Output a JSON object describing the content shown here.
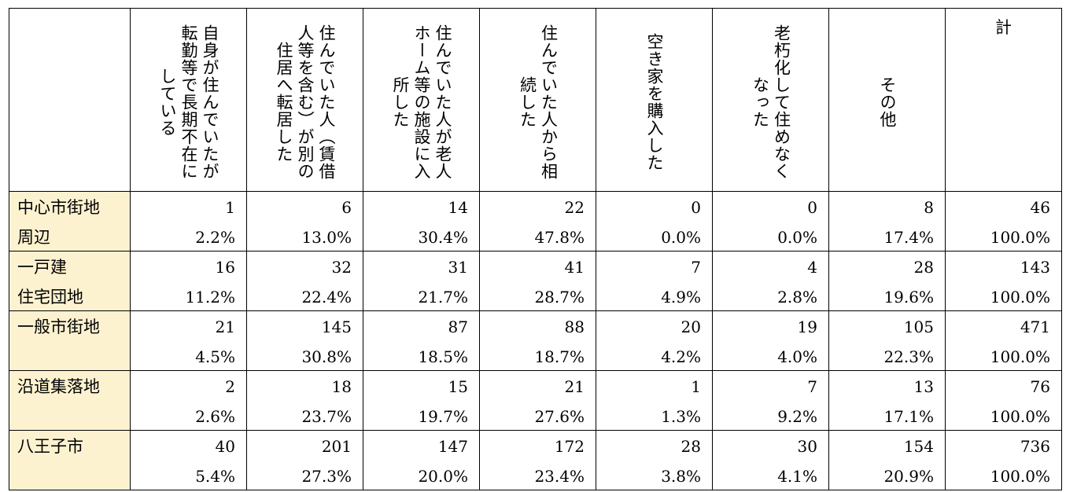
{
  "table": {
    "corner": "",
    "columns": [
      "自身が住んでいたが転勤等で長期不在にしている",
      "住んでいた人（賃借人等を含む）が別の住居へ転居した",
      "住んでいた人が老人ホーム等の施設に入所した",
      "住んでいた人から相続した",
      "空き家を購入した",
      "老朽化して住めなくなった",
      "その他",
      "計"
    ],
    "column_lines": [
      [
        "自身が住んでいたが",
        "転勤等で長期不在に",
        "している"
      ],
      [
        "住んでいた人（賃借",
        "人等を含む）が別の",
        "住居へ転居した"
      ],
      [
        "住んでいた人が老人",
        "ホーム等の施設に入",
        "所した"
      ],
      [
        "住んでいた人から相",
        "続した"
      ],
      [
        "空き家を購入した"
      ],
      [
        "老朽化して住めなく",
        "なった"
      ],
      [
        "その他"
      ]
    ],
    "total_label": "計",
    "rows": [
      {
        "label1": "中心市街地",
        "label2": "周辺",
        "counts": [
          "1",
          "6",
          "14",
          "22",
          "0",
          "0",
          "8",
          "46"
        ],
        "pcts": [
          "2.2%",
          "13.0%",
          "30.4%",
          "47.8%",
          "0.0%",
          "0.0%",
          "17.4%",
          "100.0%"
        ]
      },
      {
        "label1": "一戸建",
        "label2": "住宅団地",
        "counts": [
          "16",
          "32",
          "31",
          "41",
          "7",
          "4",
          "28",
          "143"
        ],
        "pcts": [
          "11.2%",
          "22.4%",
          "21.7%",
          "28.7%",
          "4.9%",
          "2.8%",
          "19.6%",
          "100.0%"
        ]
      },
      {
        "label1": "一般市街地",
        "label2": "",
        "counts": [
          "21",
          "145",
          "87",
          "88",
          "20",
          "19",
          "105",
          "471"
        ],
        "pcts": [
          "4.5%",
          "30.8%",
          "18.5%",
          "18.7%",
          "4.2%",
          "4.0%",
          "22.3%",
          "100.0%"
        ]
      },
      {
        "label1": "沿道集落地",
        "label2": "",
        "counts": [
          "2",
          "18",
          "15",
          "21",
          "1",
          "7",
          "13",
          "76"
        ],
        "pcts": [
          "2.6%",
          "23.7%",
          "19.7%",
          "27.6%",
          "1.3%",
          "9.2%",
          "17.1%",
          "100.0%"
        ]
      },
      {
        "label1": "八王子市",
        "label2": "",
        "counts": [
          "40",
          "201",
          "147",
          "172",
          "28",
          "30",
          "154",
          "736"
        ],
        "pcts": [
          "5.4%",
          "27.3%",
          "20.0%",
          "23.4%",
          "3.8%",
          "4.1%",
          "20.9%",
          "100.0%"
        ]
      }
    ]
  }
}
